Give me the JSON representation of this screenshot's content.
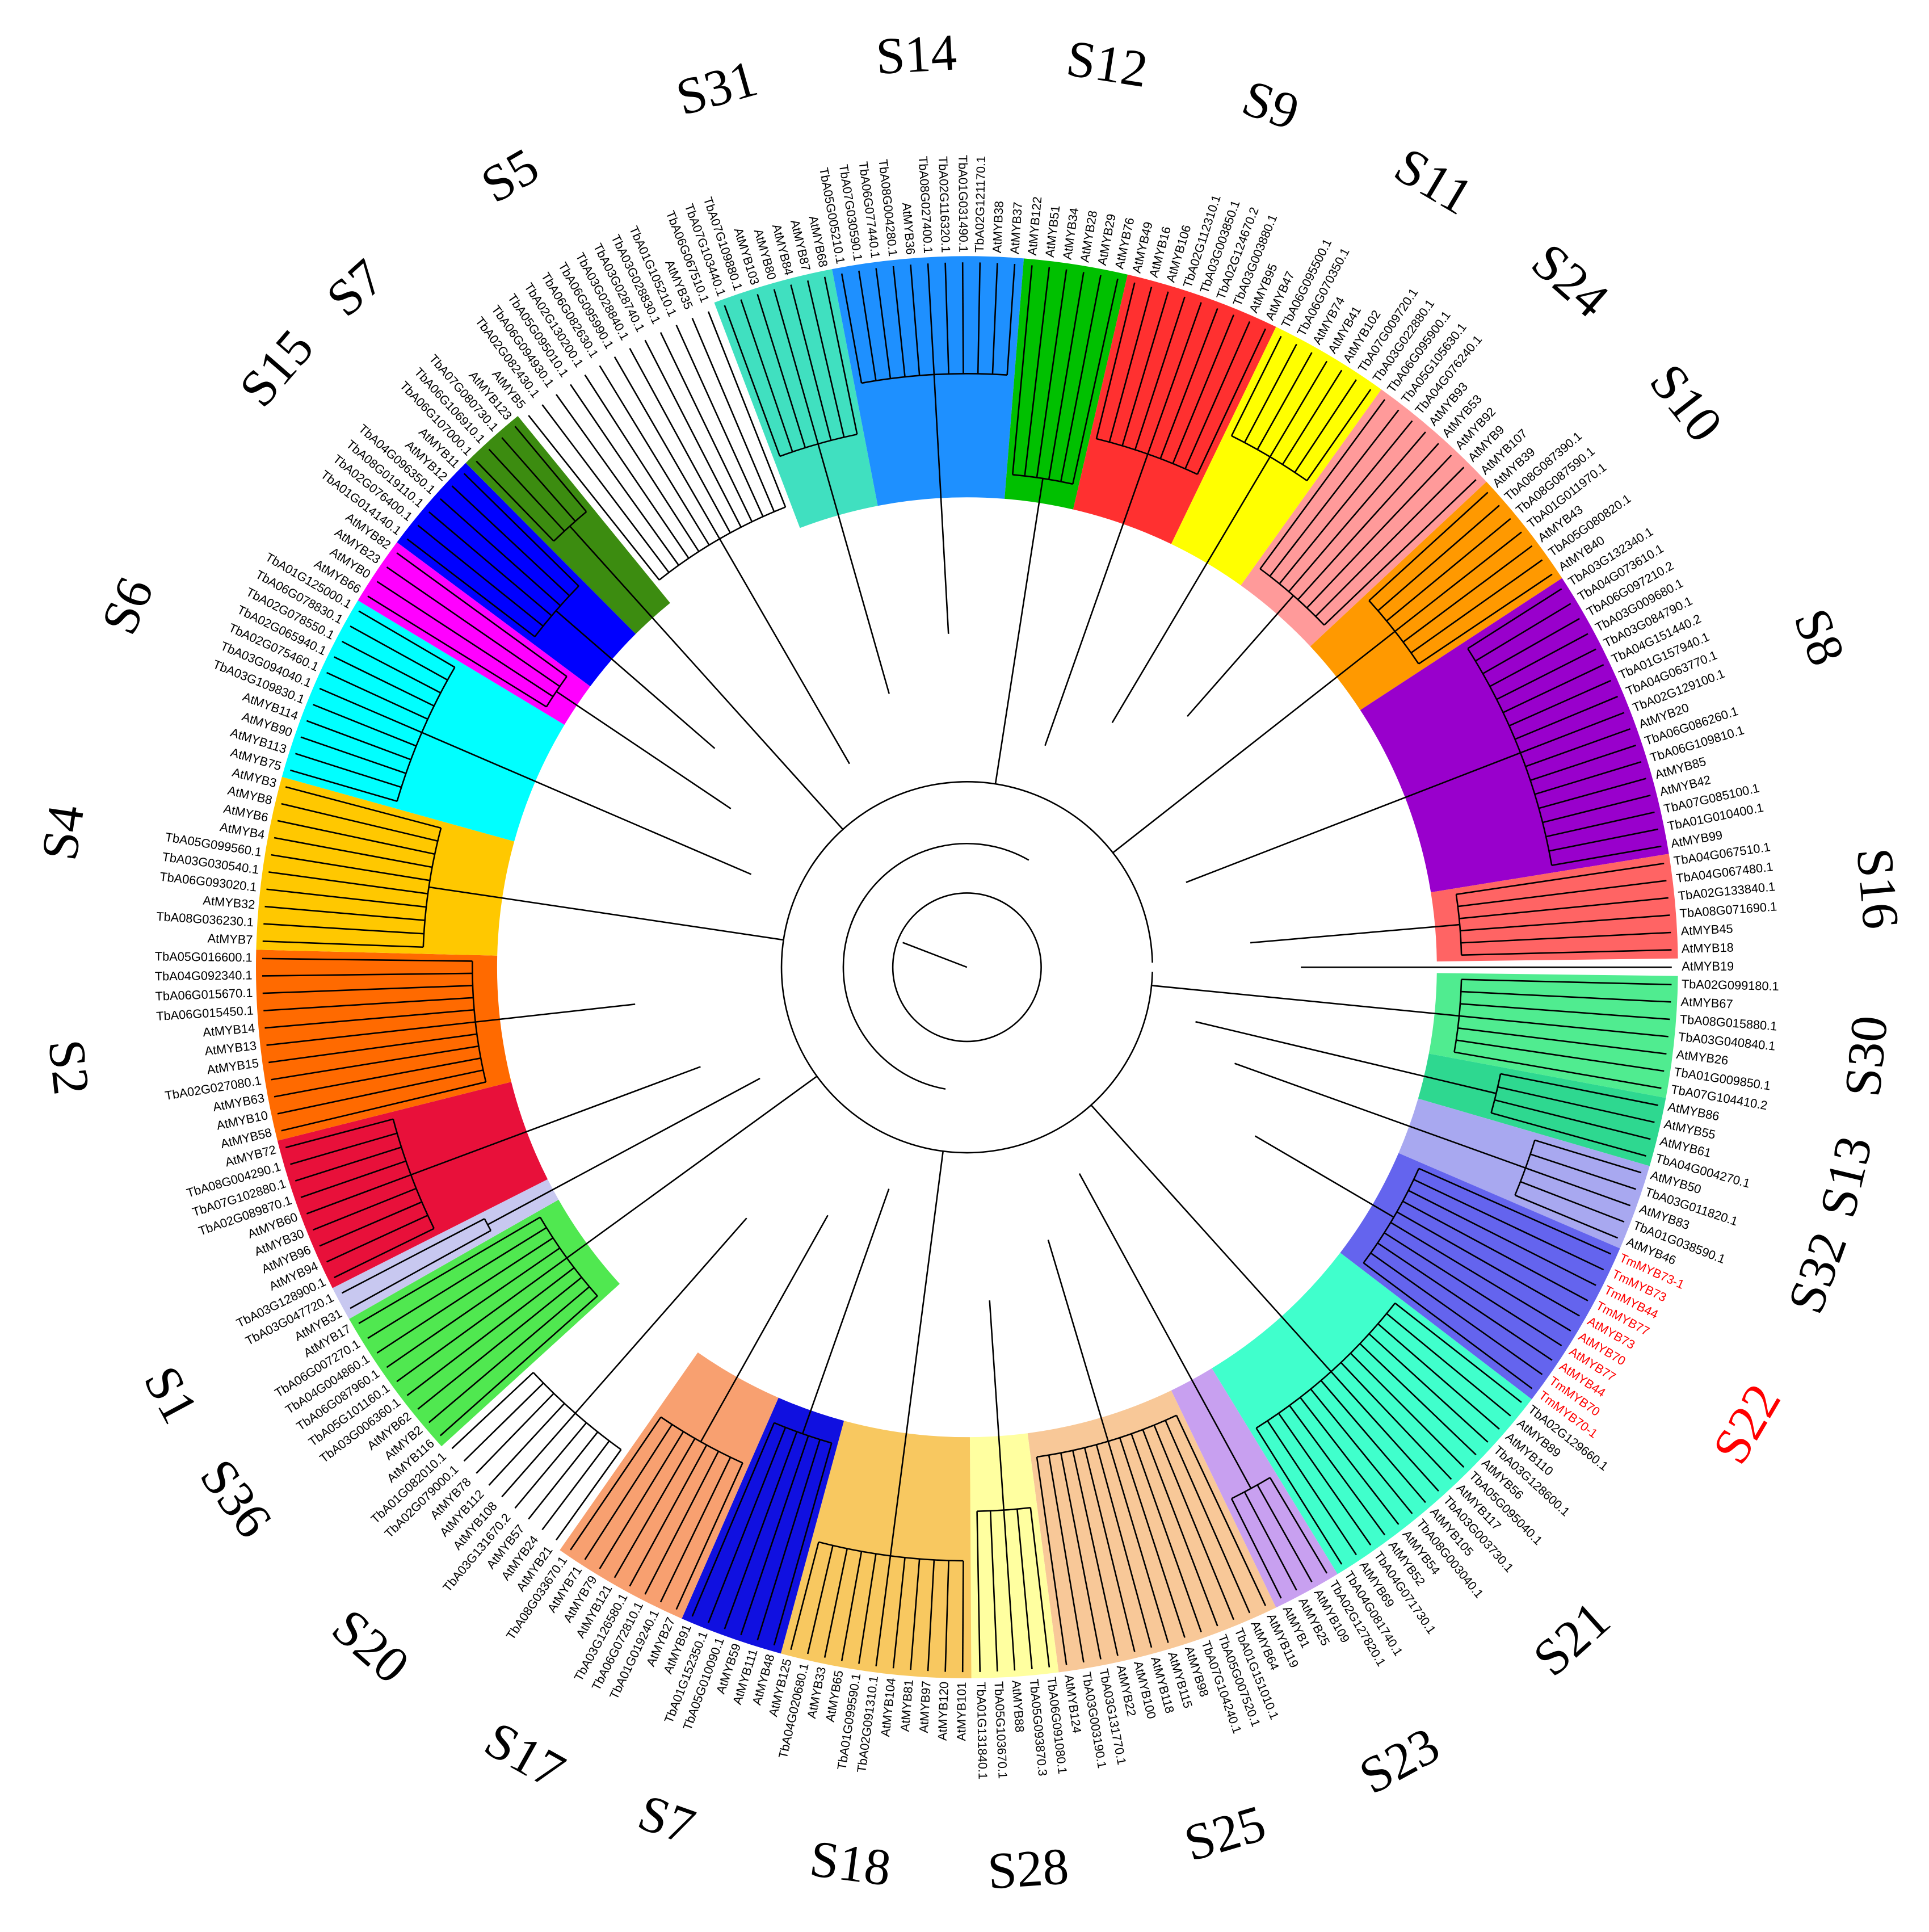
{
  "groups": [
    {
      "label": "S30",
      "color": "#50ec90",
      "leaves": [
        "TbA02G099180.1",
        "AtMYB67",
        "TbA08G015880.1",
        "TbA03G040840.1",
        "AtMYB26",
        "TbA01G009850.1",
        "TbA07G104410.2"
      ]
    },
    {
      "label": "S13",
      "color": "#2ed890",
      "leaves": [
        "AtMYB86",
        "AtMYB55",
        "AtMYB61",
        "TbA04G004270.1"
      ]
    },
    {
      "label": "S32",
      "color": "#a8a8f0",
      "leaves": [
        "AtMYB50",
        "TbA03G011820.1",
        "AtMYB83",
        "TbA01G038590.1",
        "AtMYB46"
      ]
    },
    {
      "label": "S22",
      "color": "#6464ee",
      "text_color": "#ff0000",
      "leaves": [
        "TmMYB73-1",
        "TmMYB73",
        "TmMYB44",
        "TmMYB77",
        "AtMYB73",
        "AtMYB70",
        "AtMYB77",
        "AtMYB44",
        "TmMYB70",
        "TmMYB70-1"
      ]
    },
    {
      "label": "S21",
      "color": "#40ffcc",
      "leaves": [
        "TbA02G129660.1",
        "AtMYB89",
        "AtMYB110",
        "TbA03G128600.1",
        "AtMYB56",
        "TbA05G095040.1",
        "AtMYB117",
        "TbA03G003730.1",
        "AtMYB105",
        "TbA08G003040.1",
        "AtMYB54",
        "AtMYB52",
        "TbA04G071730.1",
        "AtMYB69",
        "TbA04G081740.1"
      ]
    },
    {
      "label": "S23",
      "color": "#c8a0f0",
      "leaves": [
        "TbA02G127820.1",
        "AtMYB109",
        "AtMYB25",
        "AtMYB1"
      ]
    },
    {
      "label": "S25",
      "color": "#f8c898",
      "leaves": [
        "AtMYB119",
        "AtMYB64",
        "TbA01G151010.1",
        "TbA05G007520.1",
        "TbA07G104240.1",
        "AtMYB98",
        "AtMYB115",
        "AtMYB118",
        "AtMYB100",
        "AtMYB22",
        "TbA03G131770.1",
        "TbA03G003190.1",
        "AtMYB124"
      ]
    },
    {
      "label": "S28",
      "color": "#ffffa0",
      "leaves": [
        "TbA06G091080.1",
        "TbA05G093870.3",
        "AtMYB88",
        "TbA05G103670.1",
        "TbA01G131840.1"
      ]
    },
    {
      "label": "S18",
      "color": "#f8c860",
      "leaves": [
        "AtMYB101",
        "AtMYB120",
        "AtMYB97",
        "AtMYB81",
        "AtMYB104",
        "TbA02G091310.1",
        "TbA01G099590.1",
        "AtMYB65",
        "AtMYB33",
        "TbA04G020680.1",
        "AtMYB125"
      ]
    },
    {
      "label": "S7",
      "color": "#1010e0",
      "leaves": [
        "AtMYB48",
        "AtMYB111",
        "AtMYB59",
        "TbA05G010090.1",
        "TbA01G152350.1",
        "AtMYB91"
      ]
    },
    {
      "label": "S17",
      "color": "#f8a070",
      "leaves": [
        "AtMYB27",
        "TbA01G019240.1",
        "TbA06G072810.1",
        "TbA03G126580.1",
        "AtMYB121",
        "AtMYB79",
        "AtMYB71",
        "TbA08G033670.1"
      ]
    },
    {
      "label": "S20",
      "color": null,
      "leaves": [
        "AtMYB21",
        "AtMYB24",
        "AtMYB57",
        "TbA03G131670.2",
        "AtMYB108",
        "AtMYB112",
        "AtMYB78",
        "TbA02G079000.1",
        "TbA01G082010.1"
      ]
    },
    {
      "label": "S36",
      "color": "#50e850",
      "leaves": [
        "AtMYB116",
        "AtMYB2",
        "AtMYB62",
        "TbA03G006360.1",
        "TbA05G101160.1",
        "TbA06G087960.1",
        "TbA04G004860.1",
        "TbA06G007270.1",
        "AtMYB17"
      ]
    },
    {
      "label": "S1",
      "color": "#c8c8f0",
      "leaves": [
        "AtMYB31",
        "TbA03G047720.1"
      ]
    },
    {
      "label": null,
      "color": "#e8103a",
      "leaves": [
        "TbA03G128900.1",
        "AtMYB94",
        "AtMYB96",
        "AtMYB30",
        "AtMYB60",
        "TbA02G089870.1",
        "TbA07G102880.1",
        "TbA08G004290.1",
        "AtMYB72"
      ]
    },
    {
      "label": "S2",
      "color": "#ff6a00",
      "leaves": [
        "AtMYB58",
        "AtMYB10",
        "AtMYB63",
        "TbA02G027080.1",
        "AtMYB15",
        "AtMYB13",
        "AtMYB14",
        "TbA06G015450.1",
        "TbA06G015670.1",
        "TbA04G092340.1",
        "TbA05G016600.1"
      ]
    },
    {
      "label": "S4",
      "color": "#ffc800",
      "leaves": [
        "AtMYB7",
        "TbA08G036230.1",
        "AtMYB32",
        "TbA06G093020.1",
        "TbA03G030540.1",
        "TbA05G099560.1",
        "AtMYB4",
        "AtMYB6",
        "AtMYB8",
        "AtMYB3"
      ]
    },
    {
      "label": "S6",
      "color": "#00ffff",
      "leaves": [
        "AtMYB75",
        "AtMYB113",
        "AtMYB90",
        "AtMYB114",
        "TbA03G109830.1",
        "TbA03G094040.1",
        "TbA02G075460.1",
        "TbA02G065940.1",
        "TbA02G078550.1",
        "TbA06G078830.1",
        "TbA01G125000.1"
      ]
    },
    {
      "label": null,
      "color": "#ff00ff",
      "leaves": [
        "AtMYB66",
        "AtMYB0",
        "AtMYB23",
        "AtMYB82"
      ]
    },
    {
      "label": "S15",
      "color": "#0000ff",
      "leaves": [
        "TbA01G014140.1",
        "TbA02G076400.1",
        "TbA08G019110.1",
        "TbA04G096350.1",
        "AtMYB12",
        "AtMYB11"
      ]
    },
    {
      "label": "S7",
      "color": "#3c8c10",
      "leaves": [
        "TbA06G107000.1",
        "TbA06G106910.1",
        "TbA07G080730.1",
        "AtMYB123"
      ]
    },
    {
      "label": "S5",
      "color": null,
      "leaves": [
        "AtMYB5",
        "TbA02G082430.1",
        "TbA06G094930.1",
        "TbA05G095010.1",
        "TbA02G130200.1",
        "TbA06G082630.1",
        "TbA06G095990.1",
        "TbA03G028840.1",
        "TbA03G028740.1",
        "TbA03G028830.1",
        "TbA01G105210.1",
        "AtMYB35",
        "TbA06G067510.1"
      ]
    },
    {
      "label": "S31",
      "color": "#40e0c0",
      "leaves": [
        "TbA07G103440.1",
        "TbA07G109880.1",
        "AtMYB103",
        "AtMYB80",
        "AtMYB84",
        "AtMYB87",
        "AtMYB68"
      ]
    },
    {
      "label": "S14",
      "color": "#1e90ff",
      "leaves": [
        "TbA05G005210.1",
        "TbA07G030590.1",
        "TbA06G077440.1",
        "TbA08G004280.1",
        "AtMYB36",
        "TbA08G027400.1",
        "TbA02G116320.1",
        "TbA01G031490.1",
        "TbA02G121170.1",
        "AtMYB38",
        "AtMYB37"
      ]
    },
    {
      "label": "S12",
      "color": "#00c000",
      "leaves": [
        "AtMYB122",
        "AtMYB51",
        "AtMYB34",
        "AtMYB28",
        "AtMYB29",
        "AtMYB76"
      ]
    },
    {
      "label": "S9",
      "color": "#ff3030",
      "leaves": [
        "AtMYB49",
        "AtMYB16",
        "AtMYB106",
        "TbA02G112310.1",
        "TbA03G003850.1",
        "TbA02G124670.2",
        "TbA03G003880.1",
        "AtMYB95",
        "AtMYB47"
      ]
    },
    {
      "label": "S11",
      "color": "#ffff00",
      "leaves": [
        "TbA06G095500.1",
        "TbA06G070350.1",
        "AtMYB74",
        "AtMYB41",
        "AtMYB102",
        "TbA07G009720.1",
        "TbA03G022880.1"
      ]
    },
    {
      "label": "S24",
      "color": "#ff9a9a",
      "leaves": [
        "TbA06G095900.1",
        "TbA05G105630.1",
        "TbA04G076240.1",
        "AtMYB93",
        "AtMYB53",
        "AtMYB92",
        "AtMYB9",
        "AtMYB107"
      ]
    },
    {
      "label": "S10",
      "color": "#ff9900",
      "leaves": [
        "AtMYB39",
        "TbA08G087390.1",
        "TbA08G087590.1",
        "TbA01G011970.1",
        "AtMYB43",
        "TbA05G080820.1",
        "AtMYB40"
      ]
    },
    {
      "label": "S8",
      "color": "#9900cc",
      "leaves": [
        "TbA03G132340.1",
        "TbA04G073610.1",
        "TbA06G097210.2",
        "TbA03G009680.1",
        "TbA03G084790.1",
        "TbA04G151440.2",
        "TbA01G157940.1",
        "TbA04G063770.1",
        "TbA02G129100.1",
        "AtMYB20",
        "TbA06G086260.1",
        "TbA06G109810.1",
        "AtMYB85",
        "AtMYB42",
        "TbA07G085100.1",
        "TbA01G010400.1",
        "AtMYB99"
      ]
    },
    {
      "label": "S16",
      "color": "#ff6464",
      "leaves": [
        "TbA04G067510.1",
        "TbA04G067480.1",
        "TbA02G133840.1",
        "TbA08G071690.1",
        "AtMYB45",
        "AtMYB18"
      ]
    },
    {
      "label": null,
      "color": null,
      "leaves": [
        "AtMYB19"
      ]
    }
  ]
}
